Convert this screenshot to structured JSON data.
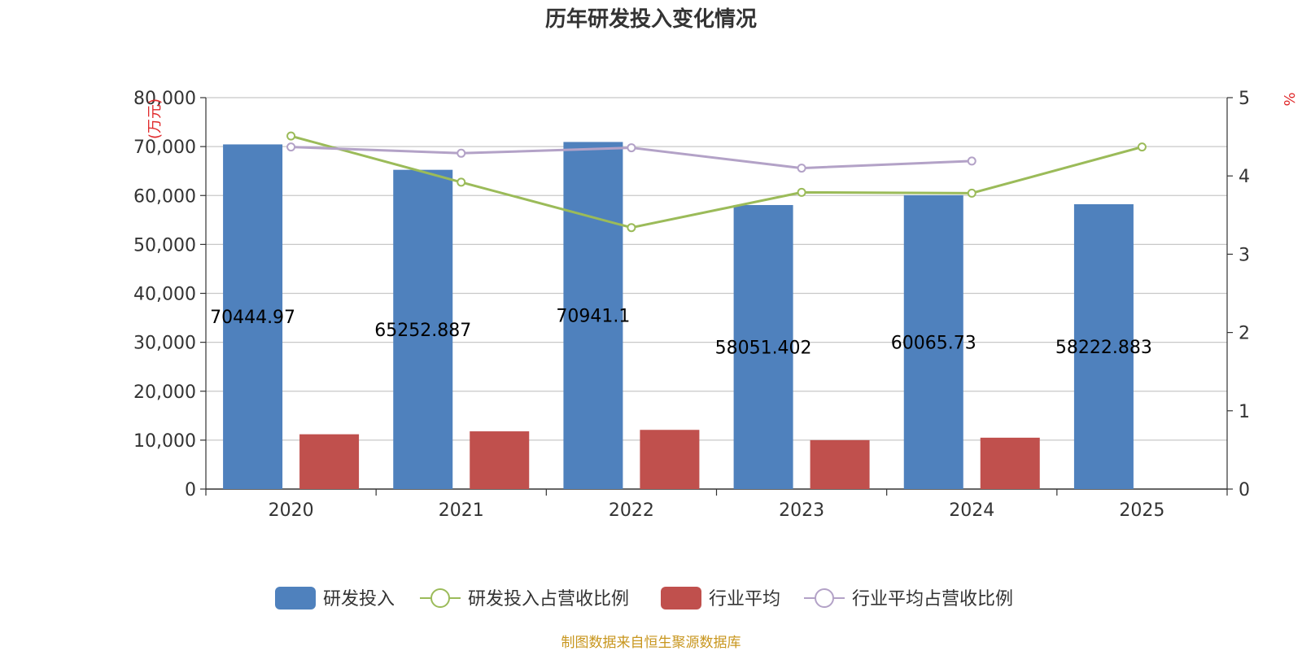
{
  "chart_data": {
    "type": "bar",
    "title": "历年研发投入变化情况",
    "categories": [
      "2020",
      "2021",
      "2022",
      "2023",
      "2024",
      "2025"
    ],
    "left_axis": {
      "unit": "(万元)",
      "min": 0,
      "max": 80000,
      "step": 10000,
      "ticks": [
        "0",
        "10,000",
        "20,000",
        "30,000",
        "40,000",
        "50,000",
        "60,000",
        "70,000",
        "80,000"
      ]
    },
    "right_axis": {
      "unit": "%",
      "min": 0,
      "max": 5,
      "step": 1,
      "ticks": [
        "0",
        "1",
        "2",
        "3",
        "4",
        "5"
      ]
    },
    "series": [
      {
        "name": "研发投入",
        "kind": "bar",
        "axis": "left",
        "color": "#4f81bd",
        "values": [
          70444.97,
          65252.887,
          70941.1,
          58051.402,
          60065.73,
          58222.883
        ],
        "labels": [
          "70444.97",
          "65252.887",
          "70941.1",
          "58051.402",
          "60065.73",
          "58222.883"
        ]
      },
      {
        "name": "研发投入占营收比例",
        "kind": "line",
        "axis": "right",
        "color": "#9bbb59",
        "values": [
          4.51,
          3.92,
          3.34,
          3.79,
          3.78,
          4.37
        ]
      },
      {
        "name": "行业平均",
        "kind": "bar",
        "axis": "left",
        "color": "#c0504d",
        "values": [
          11200,
          11800,
          12100,
          10000,
          10500,
          null
        ]
      },
      {
        "name": "行业平均占营收比例",
        "kind": "line",
        "axis": "right",
        "color": "#b3a2c7",
        "values": [
          4.37,
          4.29,
          4.36,
          4.1,
          4.19,
          null
        ]
      }
    ]
  },
  "legend": [
    {
      "name": "研发投入",
      "kind": "bar",
      "color": "#4f81bd"
    },
    {
      "name": "研发投入占营收比例",
      "kind": "line",
      "color": "#9bbb59"
    },
    {
      "name": "行业平均",
      "kind": "bar",
      "color": "#c0504d"
    },
    {
      "name": "行业平均占营收比例",
      "kind": "line",
      "color": "#b3a2c7"
    }
  ],
  "footer": {
    "source": "制图数据来自恒生聚源数据库"
  }
}
